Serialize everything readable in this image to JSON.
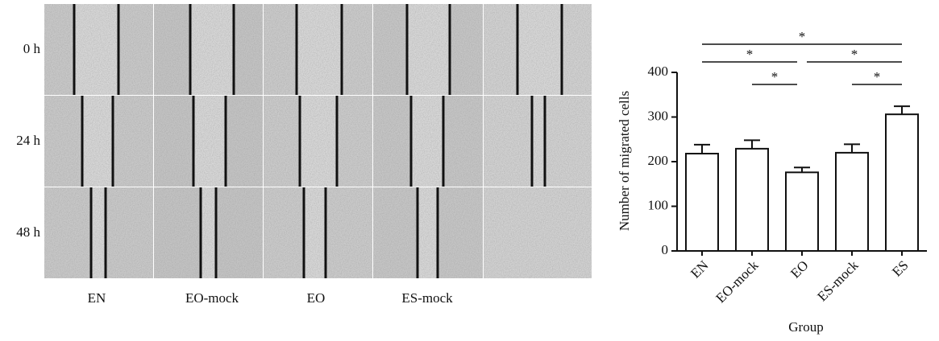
{
  "panel": {
    "rows": [
      "0 h",
      "24 h",
      "48 h"
    ],
    "columns": [
      "EN",
      "EO-mock",
      "EO",
      "ES-mock",
      null
    ]
  },
  "chart_data": {
    "type": "bar",
    "categories": [
      "EN",
      "EO-mock",
      "EO",
      "ES-mock",
      "ES"
    ],
    "values": [
      218,
      229,
      176,
      220,
      306
    ],
    "errors": [
      20,
      19,
      11,
      19,
      18
    ],
    "color": "#ffffff",
    "ylabel": "Number of migrated cells",
    "xlabel": "Group",
    "ylim": [
      0,
      400
    ],
    "yticks": [
      0,
      100,
      200,
      300,
      400
    ],
    "comparisons": [
      {
        "pair": [
          "EN",
          "ES"
        ],
        "label": "*"
      },
      {
        "pair": [
          "EN",
          "EO"
        ],
        "label": "*"
      },
      {
        "pair": [
          "EO",
          "ES"
        ],
        "label": "*"
      },
      {
        "pair": [
          "EO-mock",
          "EO"
        ],
        "label": "*"
      },
      {
        "pair": [
          "ES-mock",
          "ES"
        ],
        "label": "*"
      }
    ]
  }
}
